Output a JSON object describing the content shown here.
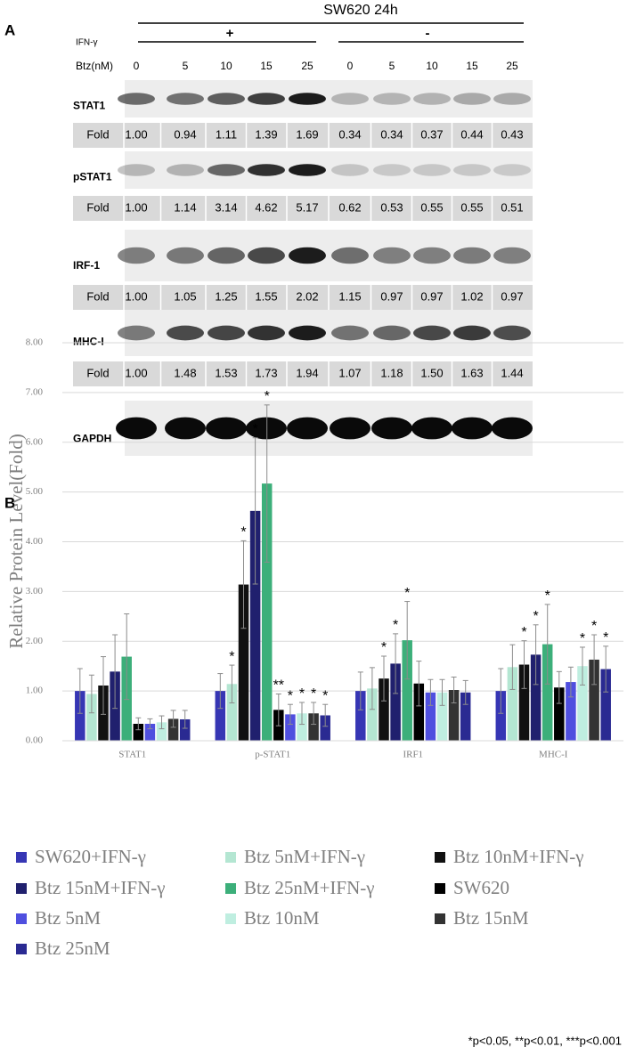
{
  "panel_a": {
    "label": "A",
    "title": "SW620 24h",
    "ifn_label": "IFN-γ",
    "ifn_groups": [
      "+",
      "-"
    ],
    "btz_label": "Btz(nM)",
    "doses": [
      0,
      5,
      10,
      15,
      25,
      0,
      5,
      10,
      15,
      25
    ],
    "fold_label": "Fold",
    "rows": [
      {
        "name": "STAT1",
        "fold": [
          "1.00",
          "0.94",
          "1.11",
          "1.39",
          "1.69",
          "0.34",
          "0.34",
          "0.37",
          "0.44",
          "0.43"
        ]
      },
      {
        "name": "pSTAT1",
        "fold": [
          "1.00",
          "1.14",
          "3.14",
          "4.62",
          "5.17",
          "0.62",
          "0.53",
          "0.55",
          "0.55",
          "0.51"
        ]
      },
      {
        "name": "IRF-1",
        "fold": [
          "1.00",
          "1.05",
          "1.25",
          "1.55",
          "2.02",
          "1.15",
          "0.97",
          "0.97",
          "1.02",
          "0.97"
        ]
      },
      {
        "name": "MHC-I",
        "fold": [
          "1.00",
          "1.48",
          "1.53",
          "1.73",
          "1.94",
          "1.07",
          "1.18",
          "1.50",
          "1.63",
          "1.44"
        ]
      },
      {
        "name": "GAPDH"
      }
    ]
  },
  "chart_data": {
    "type": "bar",
    "label": "B",
    "ylabel": "Relative Protein Level(Fold)",
    "categories": [
      "STAT1",
      "p-STAT1",
      "IRF1",
      "MHC-I"
    ],
    "ylim": [
      0,
      8
    ],
    "yticks": [
      {
        "value": 0,
        "label": "0.00"
      },
      {
        "value": 1,
        "label": "1.00"
      },
      {
        "value": 2,
        "label": "2.00"
      },
      {
        "value": 3,
        "label": "3.00"
      },
      {
        "value": 4,
        "label": "4.00"
      },
      {
        "value": 5,
        "label": "5.00"
      },
      {
        "value": 6,
        "label": "6.00"
      },
      {
        "value": 7,
        "label": "7.00"
      },
      {
        "value": 8,
        "label": "8.00"
      }
    ],
    "grid": true,
    "series": [
      {
        "name": "SW620+IFN-γ",
        "color": "#3636b4",
        "values": [
          1.0,
          1.0,
          1.0,
          1.0
        ],
        "errors": [
          0.45,
          0.35,
          0.38,
          0.45
        ],
        "significance": [
          null,
          null,
          null,
          null
        ]
      },
      {
        "name": "Btz 5nM+IFN-γ",
        "color": "#b4e6d2",
        "values": [
          0.94,
          1.14,
          1.05,
          1.48
        ],
        "errors": [
          0.38,
          0.38,
          0.42,
          0.45
        ],
        "significance": [
          null,
          "*",
          null,
          null
        ]
      },
      {
        "name": "Btz 10nM+IFN-γ",
        "color": "#111111",
        "values": [
          1.11,
          3.14,
          1.25,
          1.53
        ],
        "errors": [
          0.58,
          0.88,
          0.45,
          0.48
        ],
        "significance": [
          null,
          "*",
          "*",
          "*"
        ]
      },
      {
        "name": "Btz 15nM+IFN-γ",
        "color": "#20206e",
        "values": [
          1.39,
          4.62,
          1.55,
          1.73
        ],
        "errors": [
          0.74,
          1.47,
          0.6,
          0.6
        ],
        "significance": [
          null,
          "*",
          "*",
          "*"
        ]
      },
      {
        "name": "Btz 25nM+IFN-γ",
        "color": "#3caf7a",
        "values": [
          1.69,
          5.17,
          2.02,
          1.94
        ],
        "errors": [
          0.86,
          1.58,
          0.78,
          0.8
        ],
        "significance": [
          null,
          "*",
          "*",
          "*"
        ]
      },
      {
        "name": "SW620",
        "color": "#000000",
        "values": [
          0.34,
          0.62,
          1.15,
          1.07
        ],
        "errors": [
          0.12,
          0.32,
          0.45,
          0.32
        ],
        "significance": [
          null,
          "**",
          null,
          null
        ]
      },
      {
        "name": "Btz 5nM",
        "color": "#4f4fdf",
        "values": [
          0.34,
          0.53,
          0.97,
          1.18
        ],
        "errors": [
          0.1,
          0.2,
          0.26,
          0.3
        ],
        "significance": [
          null,
          "*",
          null,
          null
        ]
      },
      {
        "name": "Btz 10nM",
        "color": "#bfeee0",
        "values": [
          0.37,
          0.55,
          0.97,
          1.5
        ],
        "errors": [
          0.13,
          0.22,
          0.26,
          0.38
        ],
        "significance": [
          null,
          "*",
          null,
          "*"
        ]
      },
      {
        "name": "Btz 15nM",
        "color": "#333333",
        "values": [
          0.44,
          0.55,
          1.02,
          1.63
        ],
        "errors": [
          0.17,
          0.22,
          0.26,
          0.5
        ],
        "significance": [
          null,
          "*",
          null,
          "*"
        ]
      },
      {
        "name": "Btz 25nM",
        "color": "#2a2a92",
        "values": [
          0.43,
          0.51,
          0.97,
          1.44
        ],
        "errors": [
          0.18,
          0.22,
          0.24,
          0.46
        ],
        "significance": [
          null,
          "*",
          null,
          "*"
        ]
      }
    ],
    "footnote": "*p<0.05, **p<0.01, ***p<0.001"
  }
}
